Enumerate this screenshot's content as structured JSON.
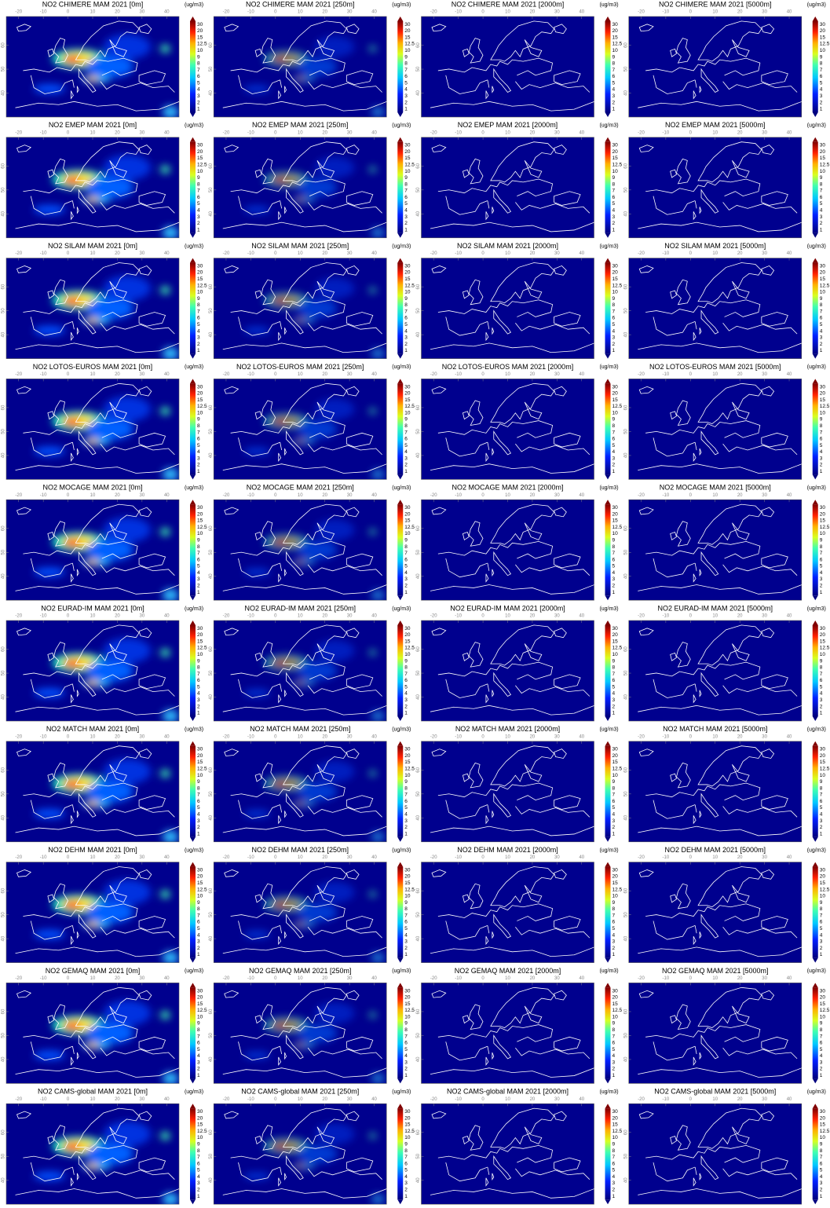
{
  "unit": "(ug/m3)",
  "colorbar_ticks": [
    30,
    20,
    15,
    12.5,
    10,
    9,
    8,
    7,
    6,
    5,
    4,
    3,
    2,
    1
  ],
  "lon_range": [
    -25,
    45
  ],
  "lon_ticks": [
    -20,
    -10,
    0,
    10,
    20,
    30,
    40
  ],
  "lat_range": [
    30,
    72
  ],
  "lat_ticks": [
    40,
    50,
    60
  ],
  "panels": [
    {
      "title": "NO2 CHIMERE MAM 2021 [0m]"
    },
    {
      "title": "NO2 CHIMERE MAM 2021 [250m]"
    },
    {
      "title": "NO2 CHIMERE MAM 2021 [2000m]"
    },
    {
      "title": "NO2 CHIMERE MAM 2021 [5000m]"
    },
    {
      "title": "NO2 EMEP MAM 2021 [0m]"
    },
    {
      "title": "NO2 EMEP MAM 2021 [250m]"
    },
    {
      "title": "NO2 EMEP MAM 2021 [2000m]"
    },
    {
      "title": "NO2 EMEP MAM 2021 [5000m]"
    },
    {
      "title": "NO2 SILAM MAM 2021 [0m]"
    },
    {
      "title": "NO2 SILAM MAM 2021 [250m]"
    },
    {
      "title": "NO2 SILAM MAM 2021 [2000m]"
    },
    {
      "title": "NO2 SILAM MAM 2021 [5000m]"
    },
    {
      "title": "NO2 LOTOS-EUROS MAM 2021 [0m]"
    },
    {
      "title": "NO2 LOTOS-EUROS MAM 2021 [250m]"
    },
    {
      "title": "NO2 LOTOS-EUROS MAM 2021 [2000m]"
    },
    {
      "title": "NO2 LOTOS-EUROS MAM 2021 [5000m]"
    },
    {
      "title": "NO2 MOCAGE MAM 2021 [0m]"
    },
    {
      "title": "NO2 MOCAGE MAM 2021 [250m]"
    },
    {
      "title": "NO2 MOCAGE MAM 2021 [2000m]"
    },
    {
      "title": "NO2 MOCAGE MAM 2021 [5000m]"
    },
    {
      "title": "NO2 EURAD-IM MAM 2021 [0m]"
    },
    {
      "title": "NO2 EURAD-IM MAM 2021 [250m]"
    },
    {
      "title": "NO2 EURAD-IM MAM 2021 [2000m]"
    },
    {
      "title": "NO2 EURAD-IM MAM 2021 [5000m]"
    },
    {
      "title": "NO2 MATCH MAM 2021 [0m]"
    },
    {
      "title": "NO2 MATCH MAM 2021 [250m]"
    },
    {
      "title": "NO2 MATCH MAM 2021 [2000m]"
    },
    {
      "title": "NO2 MATCH MAM 2021 [5000m]"
    },
    {
      "title": "NO2 DEHM MAM 2021 [0m]"
    },
    {
      "title": "NO2 DEHM MAM 2021 [250m]"
    },
    {
      "title": "NO2 DEHM MAM 2021 [2000m]"
    },
    {
      "title": "NO2 DEHM MAM 2021 [5000m]"
    },
    {
      "title": "NO2 GEMAQ MAM 2021 [0m]"
    },
    {
      "title": "NO2 GEMAQ MAM 2021 [250m]"
    },
    {
      "title": "NO2 GEMAQ MAM 2021 [2000m]"
    },
    {
      "title": "NO2 GEMAQ MAM 2021 [5000m]"
    },
    {
      "title": "NO2 CAMS-global MAM 2021 [0m]"
    },
    {
      "title": "NO2 CAMS-global MAM 2021 [250m]"
    },
    {
      "title": "NO2 CAMS-global MAM 2021 [2000m]"
    },
    {
      "title": "NO2 CAMS-global MAM 2021 [5000m]"
    }
  ]
}
